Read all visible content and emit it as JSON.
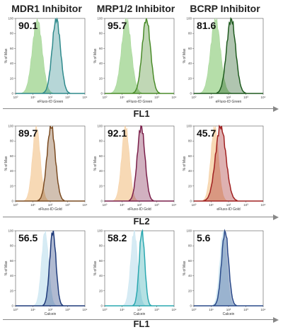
{
  "columns": [
    "MDR1 Inhibitor",
    "MRP1/2 Inhibitor",
    "BCRP Inhibitor"
  ],
  "rows": [
    {
      "channel": "FL1",
      "xlabel": "eFluxx-ID Green",
      "fill_color": "#a8d89a",
      "stroke_color": "#8fc57f",
      "row_line_color": "#888888"
    },
    {
      "channel": "FL2",
      "xlabel": "eFluxx-ID Gold",
      "fill_color": "#f6d2a8",
      "stroke_color": "#e6b98a"
    },
    {
      "channel": "FL1",
      "xlabel": "Calcein",
      "fill_color": "#cfe8f2",
      "stroke_color": "#a9d4e6"
    }
  ],
  "ylabel": "% of Max",
  "x_ticks": [
    "10⁰",
    "10¹",
    "10²",
    "10³",
    "10⁴"
  ],
  "y_ticks": [
    "0",
    "20",
    "40",
    "60",
    "80",
    "100"
  ],
  "chart_data": [
    {
      "type": "histogram",
      "row": 0,
      "col": 0,
      "percent": "90.1",
      "inhibitor": "MDR1 Inhibitor",
      "channel": "FL1",
      "xlabel": "eFluxx-ID Green",
      "ylabel": "% of Max",
      "x_scale": "log",
      "xlim": [
        1,
        10000
      ],
      "ylim": [
        0,
        100
      ],
      "series": [
        {
          "role": "control",
          "color": "#a8d89a",
          "peak_log10x": 1.25,
          "width_log10": 0.28
        },
        {
          "role": "inhibitor",
          "color": "#2f8a8c",
          "peak_log10x": 2.35,
          "width_log10": 0.24
        }
      ]
    },
    {
      "type": "histogram",
      "row": 0,
      "col": 1,
      "percent": "95.7",
      "inhibitor": "MRP1/2 Inhibitor",
      "channel": "FL1",
      "xlabel": "eFluxx-ID Green",
      "ylabel": "% of Max",
      "x_scale": "log",
      "xlim": [
        1,
        10000
      ],
      "ylim": [
        0,
        100
      ],
      "series": [
        {
          "role": "control",
          "color": "#a8d89a",
          "peak_log10x": 1.25,
          "width_log10": 0.28
        },
        {
          "role": "inhibitor",
          "color": "#4a8c2a",
          "peak_log10x": 2.4,
          "width_log10": 0.24
        }
      ]
    },
    {
      "type": "histogram",
      "row": 0,
      "col": 2,
      "percent": "81.6",
      "inhibitor": "BCRP Inhibitor",
      "channel": "FL1",
      "xlabel": "eFluxx-ID Green",
      "ylabel": "% of Max",
      "x_scale": "log",
      "xlim": [
        1,
        10000
      ],
      "ylim": [
        0,
        100
      ],
      "series": [
        {
          "role": "control",
          "color": "#a8d89a",
          "peak_log10x": 1.25,
          "width_log10": 0.28
        },
        {
          "role": "inhibitor",
          "color": "#1e5a1e",
          "peak_log10x": 2.15,
          "width_log10": 0.26
        }
      ]
    },
    {
      "type": "histogram",
      "row": 1,
      "col": 0,
      "percent": "89.7",
      "inhibitor": "MDR1 Inhibitor",
      "channel": "FL2",
      "xlabel": "eFluxx-ID Gold",
      "ylabel": "% of Max",
      "x_scale": "log",
      "xlim": [
        1,
        10000
      ],
      "ylim": [
        0,
        100
      ],
      "series": [
        {
          "role": "control",
          "color": "#f6d2a8",
          "peak_log10x": 1.2,
          "width_log10": 0.22
        },
        {
          "role": "inhibitor",
          "color": "#7a4a20",
          "peak_log10x": 2.05,
          "width_log10": 0.24
        }
      ]
    },
    {
      "type": "histogram",
      "row": 1,
      "col": 1,
      "percent": "92.1",
      "inhibitor": "MRP1/2 Inhibitor",
      "channel": "FL2",
      "xlabel": "eFluxx-ID Gold",
      "ylabel": "% of Max",
      "x_scale": "log",
      "xlim": [
        1,
        10000
      ],
      "ylim": [
        0,
        100
      ],
      "series": [
        {
          "role": "control",
          "color": "#f6d2a8",
          "peak_log10x": 1.2,
          "width_log10": 0.22
        },
        {
          "role": "inhibitor",
          "color": "#7a1f4a",
          "peak_log10x": 2.1,
          "width_log10": 0.22
        }
      ]
    },
    {
      "type": "histogram",
      "row": 1,
      "col": 2,
      "percent": "45.7",
      "inhibitor": "BCRP Inhibitor",
      "channel": "FL2",
      "xlabel": "eFluxx-ID Gold",
      "ylabel": "% of Max",
      "x_scale": "log",
      "xlim": [
        1,
        10000
      ],
      "ylim": [
        0,
        100
      ],
      "series": [
        {
          "role": "control",
          "color": "#f6d2a8",
          "peak_log10x": 1.2,
          "width_log10": 0.22
        },
        {
          "role": "inhibitor",
          "color": "#a02020",
          "peak_log10x": 1.55,
          "width_log10": 0.3
        }
      ]
    },
    {
      "type": "histogram",
      "row": 2,
      "col": 0,
      "percent": "56.5",
      "inhibitor": "MDR1 Inhibitor",
      "channel": "FL1",
      "xlabel": "Calcein",
      "ylabel": "% of Max",
      "x_scale": "log",
      "xlim": [
        1,
        10000
      ],
      "ylim": [
        0,
        100
      ],
      "series": [
        {
          "role": "control",
          "color": "#cfe8f2",
          "peak_log10x": 1.7,
          "width_log10": 0.2
        },
        {
          "role": "inhibitor",
          "color": "#1e3a7a",
          "peak_log10x": 2.15,
          "width_log10": 0.18
        }
      ]
    },
    {
      "type": "histogram",
      "row": 2,
      "col": 1,
      "percent": "58.2",
      "inhibitor": "MRP1/2 Inhibitor",
      "channel": "FL1",
      "xlabel": "Calcein",
      "ylabel": "% of Max",
      "x_scale": "log",
      "xlim": [
        1,
        10000
      ],
      "ylim": [
        0,
        100
      ],
      "series": [
        {
          "role": "control",
          "color": "#cfe8f2",
          "peak_log10x": 1.7,
          "width_log10": 0.2
        },
        {
          "role": "inhibitor",
          "color": "#2aa8b0",
          "peak_log10x": 2.15,
          "width_log10": 0.16
        }
      ]
    },
    {
      "type": "histogram",
      "row": 2,
      "col": 2,
      "percent": "5.6",
      "inhibitor": "BCRP Inhibitor",
      "channel": "FL1",
      "xlabel": "Calcein",
      "ylabel": "% of Max",
      "x_scale": "log",
      "xlim": [
        1,
        10000
      ],
      "ylim": [
        0,
        100
      ],
      "series": [
        {
          "role": "control",
          "color": "#cfe8f2",
          "peak_log10x": 1.7,
          "width_log10": 0.2
        },
        {
          "role": "inhibitor",
          "color": "#2a4a8a",
          "peak_log10x": 1.8,
          "width_log10": 0.2
        }
      ]
    }
  ]
}
